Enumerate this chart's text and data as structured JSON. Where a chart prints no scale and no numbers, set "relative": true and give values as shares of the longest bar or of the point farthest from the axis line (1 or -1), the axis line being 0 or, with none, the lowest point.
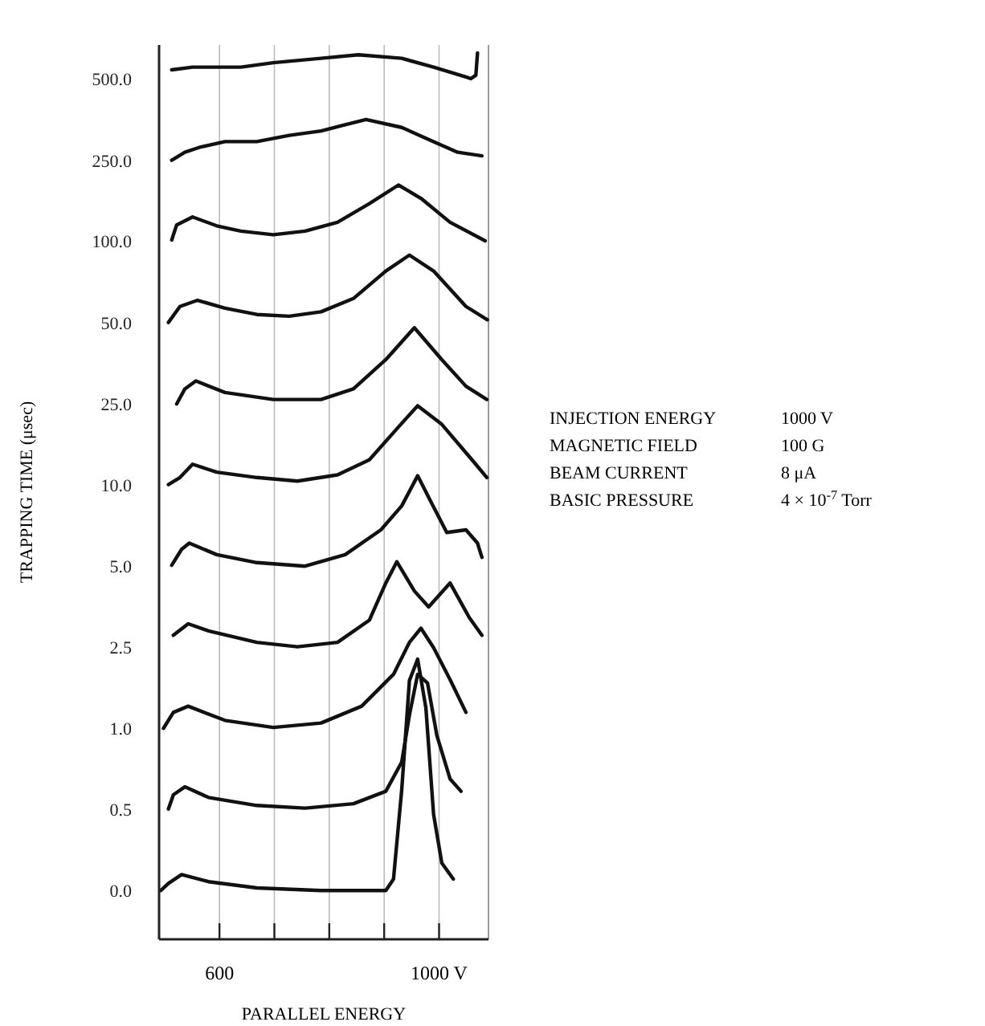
{
  "chart_data": [
    {
      "type": "line",
      "relative": true,
      "xlim": [
        490,
        1090
      ],
      "grid": "x",
      "xticks": [
        600,
        {
          "value": 700,
          "label": null
        },
        {
          "value": 800,
          "label": null
        },
        {
          "value": 900,
          "label": null
        },
        {
          "value": 1000,
          "label": "1000 V"
        }
      ],
      "xlabel": "PARALLEL ENERGY",
      "ylabel": "TRAPPING TIME (μsec)",
      "series": [
        {
          "name": "500.0",
          "color": "#111111",
          "x": [
            513,
            551,
            639,
            698,
            785,
            853,
            932,
            990,
            1049,
            1058,
            1067,
            1070
          ],
          "values": [
            0.981,
            0.984,
            0.984,
            0.989,
            0.994,
            0.998,
            0.994,
            0.984,
            0.973,
            0.971,
            0.975,
            1
          ]
        },
        {
          "name": "250.0",
          "color": "#111111",
          "x": [
            513,
            537,
            566,
            610,
            668,
            727,
            785,
            829,
            867,
            932,
            990,
            1034,
            1078
          ],
          "values": [
            0.879,
            0.888,
            0.894,
            0.9,
            0.9,
            0.907,
            0.912,
            0.919,
            0.925,
            0.916,
            0.9,
            0.888,
            0.884
          ]
        },
        {
          "name": "100.0",
          "color": "#111111",
          "x": [
            513,
            522,
            551,
            595,
            639,
            698,
            756,
            815,
            873,
            926,
            967,
            1020,
            1084
          ],
          "values": [
            0.789,
            0.806,
            0.815,
            0.805,
            0.799,
            0.795,
            0.799,
            0.809,
            0.83,
            0.851,
            0.836,
            0.809,
            0.788
          ]
        },
        {
          "name": "50.0",
          "color": "#111111",
          "x": [
            507,
            528,
            560,
            610,
            668,
            727,
            785,
            844,
            903,
            946,
            990,
            1049,
            1088
          ],
          "values": [
            0.696,
            0.714,
            0.721,
            0.712,
            0.705,
            0.703,
            0.708,
            0.723,
            0.754,
            0.772,
            0.754,
            0.714,
            0.699
          ]
        },
        {
          "name": "25.0",
          "color": "#111111",
          "x": [
            522,
            537,
            557,
            610,
            698,
            785,
            844,
            903,
            955,
            1005,
            1049,
            1087
          ],
          "values": [
            0.604,
            0.621,
            0.63,
            0.617,
            0.609,
            0.609,
            0.621,
            0.654,
            0.69,
            0.654,
            0.624,
            0.609
          ]
        },
        {
          "name": "10.0",
          "color": "#111111",
          "x": [
            507,
            528,
            551,
            595,
            668,
            742,
            815,
            873,
            926,
            961,
            1005,
            1064,
            1087
          ],
          "values": [
            0.513,
            0.521,
            0.536,
            0.527,
            0.521,
            0.517,
            0.524,
            0.541,
            0.578,
            0.602,
            0.581,
            0.538,
            0.521
          ]
        },
        {
          "name": "5.0",
          "color": "#111111",
          "x": [
            513,
            531,
            545,
            595,
            668,
            756,
            829,
            894,
            932,
            961,
            984,
            1014,
            1049,
            1070,
            1078
          ],
          "values": [
            0.422,
            0.44,
            0.447,
            0.434,
            0.425,
            0.421,
            0.434,
            0.462,
            0.489,
            0.523,
            0.495,
            0.459,
            0.462,
            0.447,
            0.431
          ]
        },
        {
          "name": "2.5",
          "color": "#111111",
          "x": [
            516,
            543,
            580,
            668,
            742,
            815,
            873,
            903,
            923,
            955,
            981,
            1020,
            1055,
            1078
          ],
          "values": [
            0.343,
            0.356,
            0.348,
            0.335,
            0.33,
            0.335,
            0.36,
            0.402,
            0.426,
            0.393,
            0.375,
            0.402,
            0.363,
            0.343
          ]
        },
        {
          "name": "1.0",
          "color": "#111111",
          "x": [
            498,
            516,
            543,
            610,
            698,
            785,
            859,
            917,
            946,
            967,
            990,
            1020,
            1049
          ],
          "values": [
            0.238,
            0.256,
            0.263,
            0.247,
            0.239,
            0.244,
            0.263,
            0.299,
            0.335,
            0.351,
            0.329,
            0.293,
            0.256
          ]
        },
        {
          "name": "0.5",
          "color": "#111111",
          "x": [
            507,
            516,
            537,
            580,
            668,
            756,
            844,
            903,
            932,
            946,
            961,
            979,
            996,
            1020,
            1040
          ],
          "values": [
            0.147,
            0.163,
            0.172,
            0.16,
            0.151,
            0.148,
            0.153,
            0.167,
            0.2,
            0.253,
            0.299,
            0.289,
            0.23,
            0.181,
            0.167
          ]
        },
        {
          "name": "0.0",
          "color": "#111111",
          "x": [
            493,
            507,
            531,
            580,
            668,
            785,
            903,
            917,
            932,
            946,
            961,
            976,
            990,
            1005,
            1026
          ],
          "values": [
            0.055,
            0.063,
            0.073,
            0.065,
            0.058,
            0.055,
            0.055,
            0.068,
            0.169,
            0.292,
            0.316,
            0.261,
            0.141,
            0.086,
            0.068
          ]
        }
      ]
    },
    {
      "type": "other",
      "annotations": [
        "INJECTION ENERGY",
        "1000 V",
        "MAGNETIC FIELD",
        "100 G",
        "BEAM CURRENT",
        "8 μA",
        "BASIC PRESSURE",
        "4 × 10$^{-7}$ Torr"
      ]
    }
  ]
}
